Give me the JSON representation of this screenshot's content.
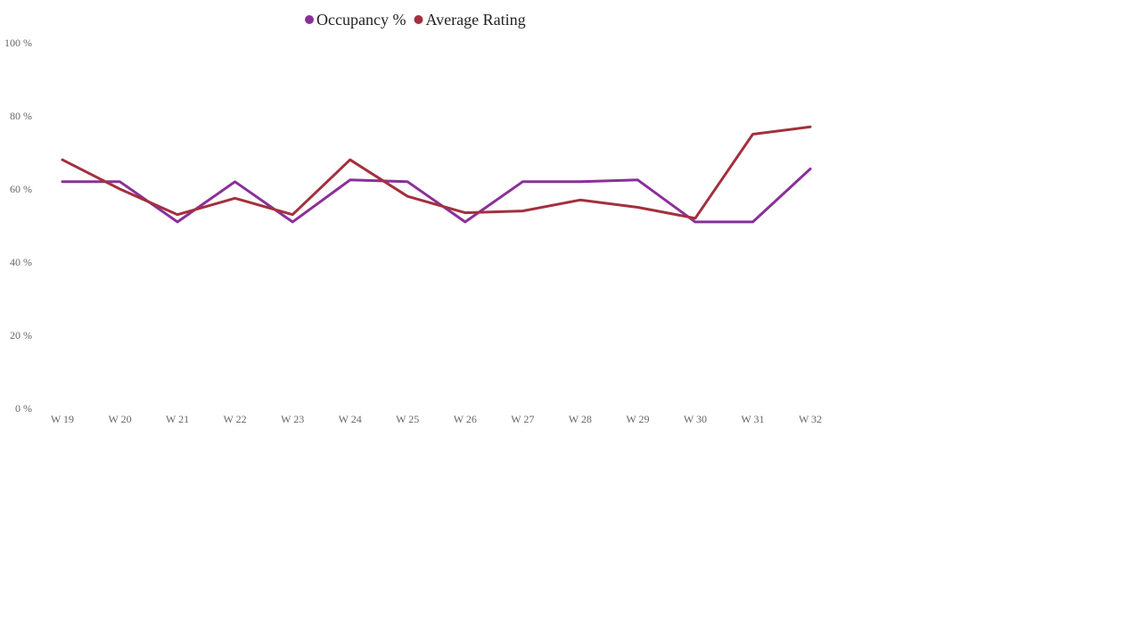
{
  "chart_data": {
    "type": "line",
    "categories": [
      "W 19",
      "W 20",
      "W 21",
      "W 22",
      "W 23",
      "W 24",
      "W 25",
      "W 26",
      "W 27",
      "W 28",
      "W 29",
      "W 30",
      "W 31",
      "W 32"
    ],
    "series": [
      {
        "name": "Occupancy %",
        "color": "#8a2f9a",
        "values": [
          62,
          62,
          51,
          62,
          51,
          62.5,
          62,
          51,
          62,
          62,
          62.5,
          51,
          51,
          65.5
        ]
      },
      {
        "name": "Average Rating",
        "color": "#a3303d",
        "values": [
          68,
          60,
          53,
          57.5,
          53,
          68,
          58,
          53.5,
          54,
          57,
          55,
          52,
          75,
          77
        ]
      }
    ],
    "yticks": [
      "0 %",
      "20 %",
      "40 %",
      "60 %",
      "80 %",
      "100 %"
    ],
    "ytick_values": [
      0,
      20,
      40,
      60,
      80,
      100
    ],
    "ylim": [
      0,
      100
    ],
    "grid": false,
    "legend_position": "top-center"
  }
}
